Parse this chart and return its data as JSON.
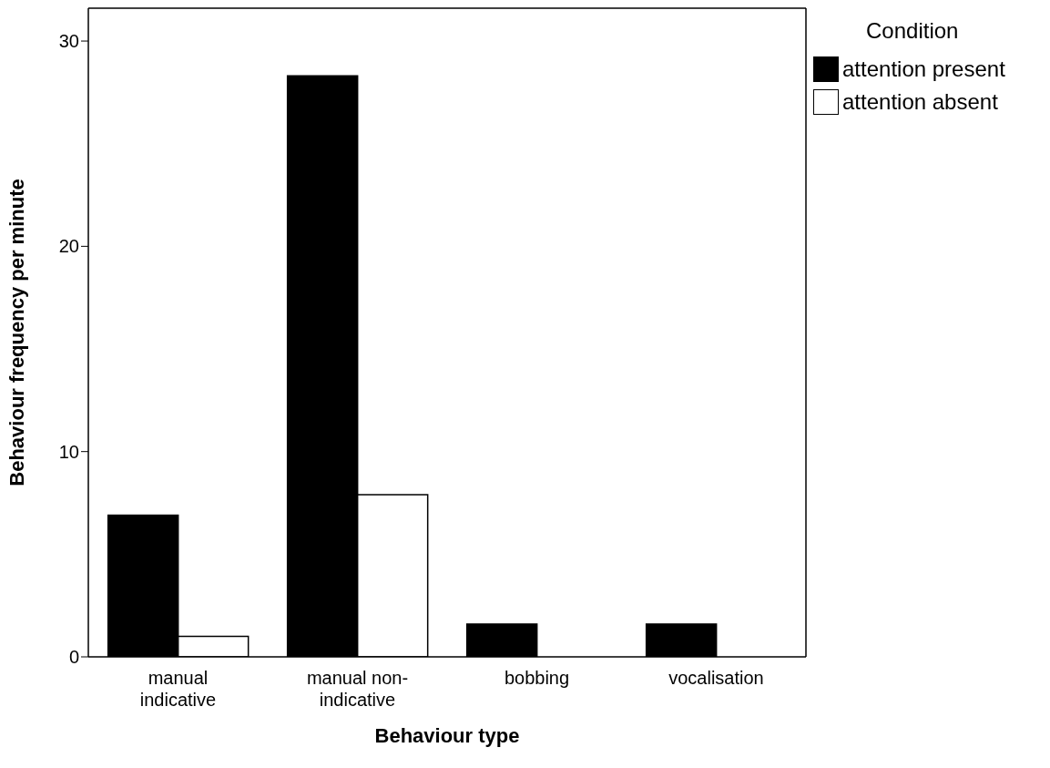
{
  "chart_data": {
    "type": "bar",
    "xlabel": "Behaviour type",
    "ylabel": "Behaviour frequency per minute",
    "legend_title": "Condition",
    "legend": "top right",
    "categories": [
      "manual indicative",
      "manual non-indicative",
      "bobbing",
      "vocalisation"
    ],
    "series": [
      {
        "name": "attention present",
        "color": "#000000",
        "values": [
          6.9,
          28.3,
          1.6,
          1.6
        ]
      },
      {
        "name": "attention absent",
        "color": "#ffffff",
        "values": [
          1.0,
          7.9,
          0,
          0
        ]
      }
    ],
    "ylim": [
      0,
      31.6
    ],
    "yticks": [
      0,
      10,
      20,
      30
    ]
  }
}
